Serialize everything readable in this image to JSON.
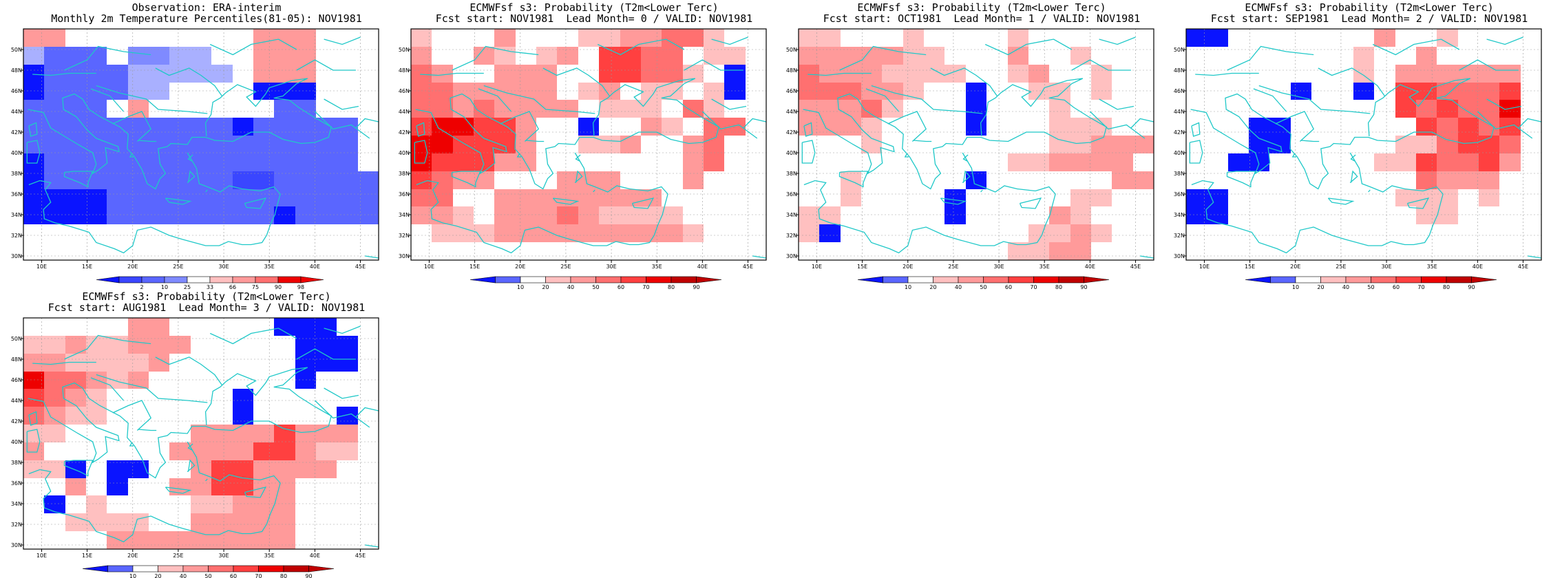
{
  "colors": {
    "blues": [
      "#0a14ff",
      "#3a46ff",
      "#5a66ff",
      "#7f8aff",
      "#a9b0ff"
    ],
    "reds": [
      "#ffc0c0",
      "#ff9a9a",
      "#ff7070",
      "#ff4040",
      "#ee0000",
      "#c00000"
    ],
    "coast": "#1fc8c8",
    "grid": "#999999"
  },
  "axis": {
    "lon_labels": [
      "10E",
      "15E",
      "20E",
      "25E",
      "30E",
      "35E",
      "40E",
      "45E"
    ],
    "lat_labels": [
      "30N",
      "32N",
      "34N",
      "36N",
      "38N",
      "40N",
      "42N",
      "44N",
      "46N",
      "48N",
      "50N"
    ]
  },
  "panels": [
    {
      "title1": "Observation: ERA-interim",
      "title2": "Monthly 2m Temperature Percentiles(81-05): NOV1981",
      "colorbar": [
        "2",
        "10",
        "25",
        "33",
        "66",
        "75",
        "90",
        "98"
      ],
      "grid": [
        "33.........333",
        "4222.5544..333",
        "0222244444.333",
        "0222244....000",
        "2222.3......22",
        "2222222222022222",
        "2222222222222222",
        "0222222222222222",
        "02222222221122222",
        "00002222222222222",
        "000022222222022223"
      ]
    },
    {
      "title1": "ECMWFsf s3: Probability (T2m<Lower Terc)",
      "title2": "Fcst start: NOV1981  Lead Month= 0 / VALID: NOV1981",
      "colorbar": [
        "10",
        "20",
        "40",
        "50",
        "60",
        "70",
        "80",
        "90"
      ],
      "grid": [
        "a...b...aabbcca",
        "b..ba.ab.ddcc.aa",
        "cb..bbb..ddcca.0",
        "ccbbbbb.ab.aa.a0",
        "ccbcbbbb.aaa.ca",
        "deeddb..0..ba.cc",
        "eedddb..aab..bc",
        "edddbb.......bc",
        "dcbb...bbb...b",
        "cc..bbbbbbbb.",
        "bba.bbbcbaaaa",
        ".aaabbbbbbbbba."
      ]
    },
    {
      "title1": "ECMWFsf s3: Probability (T2m<Lower Terc)",
      "title2": "Fcst start: OCT1981  Lead Month= 1 / VALID: NOV1981",
      "colorbar": [
        "10",
        "20",
        "40",
        "50",
        "60",
        "70",
        "80",
        "90"
      ],
      "grid": [
        "aa...a....a.",
        "bbbbbaa...b..a",
        "cbbbaaaa..ab..a",
        "cccbba..0..aa.a.",
        "bbbca...0...a...",
        "bbba....0...aaa.",
        "...a........aabbb",
        "..........aabbbb",
        "..a.....0......bb",
        "..a....0.....aa",
        "aa.....0....ba.",
        "a0.........aaba",
        "..........aabb"
      ]
    },
    {
      "title1": "ECMWFsf s3: Probability (T2m<Lower Terc)",
      "title2": "Fcst start: SEP1981  Lead Month= 2 / VALID: NOV1981",
      "colorbar": [
        "10",
        "20",
        "40",
        "50",
        "60",
        "70",
        "80",
        "90"
      ],
      "grid": [
        "00.......b..a",
        "........a..b.",
        "........a.bbbbbb",
        ".....0..0.ddcccd",
        "..........dcdcce",
        "...00......dcdcd",
        "...00.....aacddc",
        "..00.....aadccdb",
        "...........cbbb",
        "00........aaa.a.",
        "00.........aa"
      ]
    },
    {
      "title1": "ECMWFsf s3: Probability (T2m<Lower Terc)",
      "title2": "Fcst start: AUG1981  Lead Month= 3 / VALID: NOV1981",
      "colorbar": [
        "10",
        "20",
        "40",
        "50",
        "60",
        "70",
        "80",
        "90"
      ],
      "grid": [
        ".....bb.....000",
        "aabaabbb.....000",
        "bbaaaab......000",
        "eccbab.......0..",
        "dcba......0.....",
        "cbaa......0....0",
        "aa......bbbbdbbb",
        "b......bbbbddbaa",
        "aa0.00..bddbbbb.",
        "..b.0..bbddbb..",
        ".0.a....aabbb...",
        "..aaaa..bbbbb...",
        "....bbbbbbbbb.."
      ]
    }
  ]
}
